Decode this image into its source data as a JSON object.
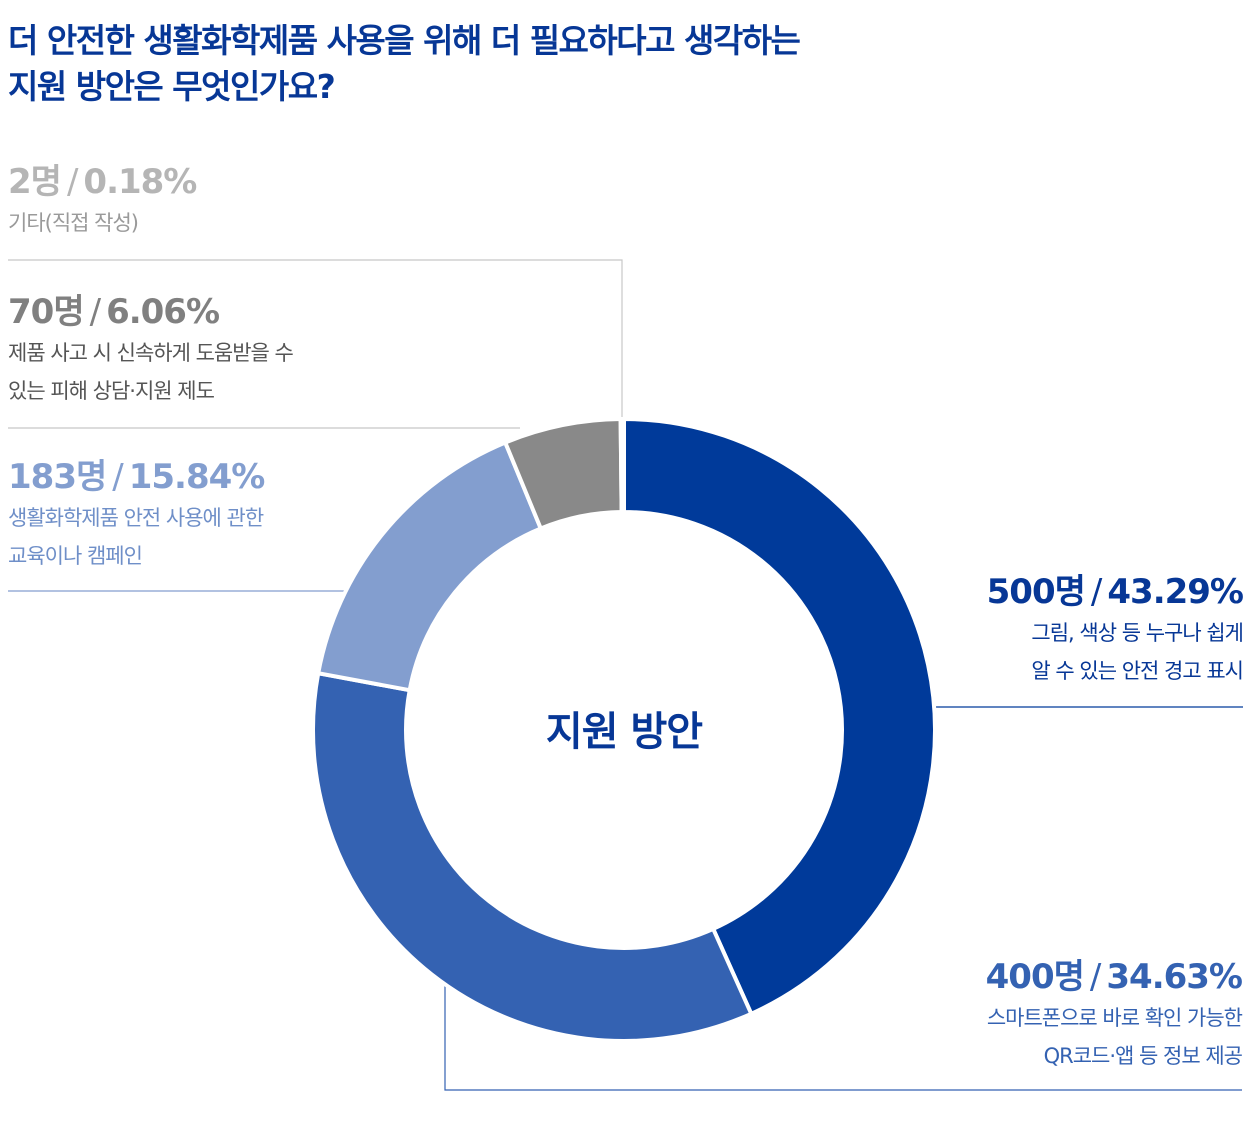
{
  "title": {
    "line1": "더 안전한 생활화학제품 사용을 위해 더 필요하다고 생각하는",
    "line2": "지원 방안은 무엇인가요?"
  },
  "colors": {
    "title": "#073796",
    "slice_500": "#003A9A",
    "slice_400": "#3462B2",
    "slice_183": "#839ECF",
    "slice_70": "#898989",
    "slice_2": "#C8C8C8",
    "lines_gray": "#C8C8C8",
    "lines_blue": "#3462B2"
  },
  "labels": [
    {
      "count": "500명",
      "percent": "43.29%",
      "desc1": "그림, 색상 등 누구나 쉽게",
      "desc2": "알 수 있는 안전 경고 표시",
      "color": "#073796",
      "desc_color": "#073796"
    },
    {
      "count": "400명",
      "percent": "34.63%",
      "desc1": "스마트폰으로 바로 확인 가능한",
      "desc2": "QR코드·앱 등 정보 제공",
      "color": "#3462B2",
      "desc_color": "#3462B2"
    },
    {
      "count": "183명",
      "percent": "15.84%",
      "desc1": "생활화학제품 안전 사용에 관한",
      "desc2": "교육이나 캠페인",
      "color": "#839ECF",
      "desc_color": "#6F8FC8"
    },
    {
      "count": "70명",
      "percent": "6.06%",
      "desc1": "제품 사고 시 신속하게 도움받을 수",
      "desc2": "있는 피해 상담·지원 제도",
      "color": "#808080",
      "desc_color": "#555555"
    },
    {
      "count": "2명",
      "percent": "0.18%",
      "desc1": "기타(직접 작성)",
      "desc2": "",
      "color": "#B5B5B5",
      "desc_color": "#9A9A9A"
    }
  ],
  "chart_data": {
    "type": "pie",
    "variant": "donut",
    "center_label": "지원 방안",
    "categories": [
      "그림, 색상 등 누구나 쉽게 알 수 있는 안전 경고 표시",
      "스마트폰으로 바로 확인 가능한 QR코드·앱 등 정보 제공",
      "생활화학제품 안전 사용에 관한 교육이나 캠페인",
      "제품 사고 시 신속하게 도움받을 수 있는 피해 상담·지원 제도",
      "기타(직접 작성)"
    ],
    "values": [
      500,
      400,
      183,
      70,
      2
    ],
    "percents": [
      43.29,
      34.63,
      15.84,
      6.06,
      0.18
    ],
    "colors": [
      "#003A9A",
      "#3462B2",
      "#839ECF",
      "#898989",
      "#C8C8C8"
    ]
  }
}
